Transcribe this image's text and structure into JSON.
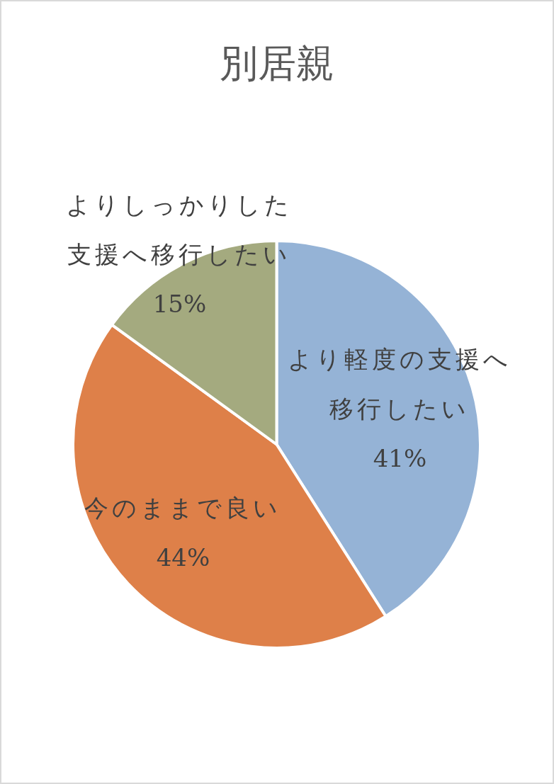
{
  "chart_data": {
    "type": "pie",
    "title": "別居親",
    "categories": [
      "より軽度の支援へ移行したい",
      "今のままで良い",
      "よりしっかりした支援へ移行したい"
    ],
    "values": [
      41,
      44,
      15
    ],
    "colors": [
      "#95b3d6",
      "#de8049",
      "#a4aa7f"
    ],
    "value_labels": [
      "41%",
      "44%",
      "15%"
    ]
  }
}
